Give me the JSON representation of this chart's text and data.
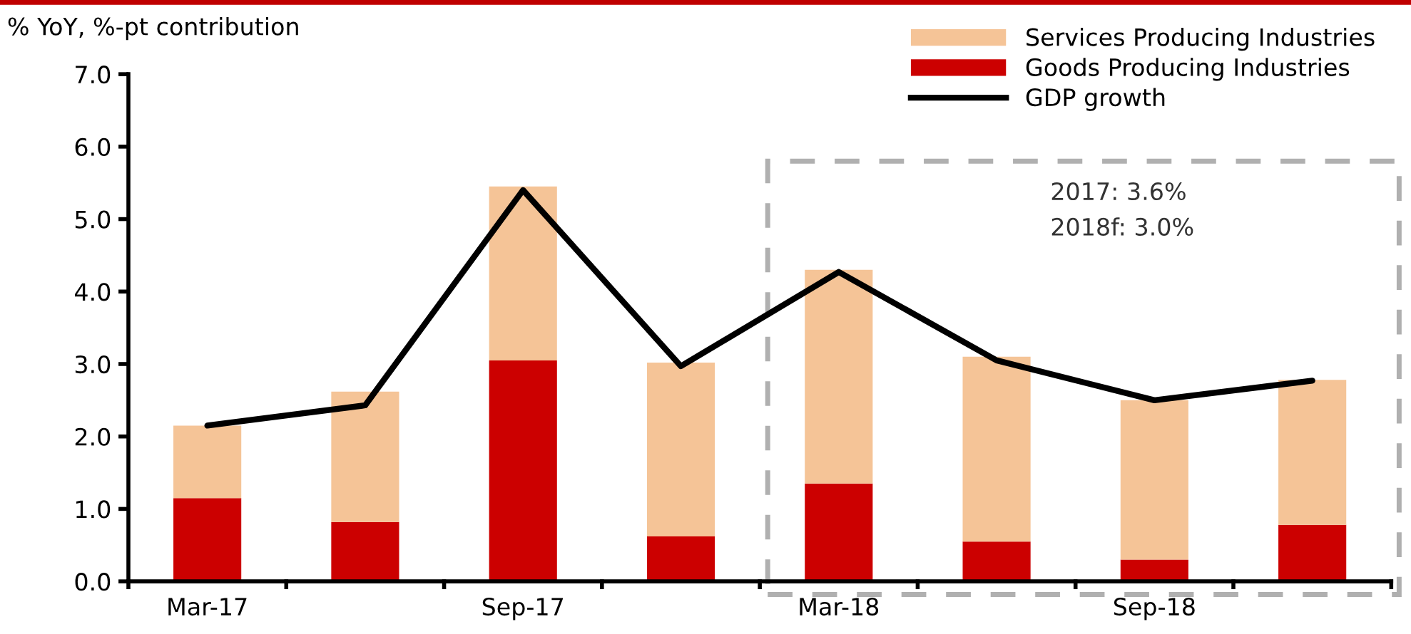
{
  "chart_data": {
    "type": "bar",
    "stacked": true,
    "ylabel": "% YoY, %-pt contribution",
    "categories": [
      "Mar-17",
      null,
      "Sep-17",
      null,
      "Mar-18",
      null,
      "Sep-18",
      null
    ],
    "series": [
      {
        "name": "Goods Producing Industries",
        "color": "#cc0000",
        "values": [
          1.15,
          0.82,
          3.05,
          0.62,
          1.35,
          0.55,
          0.3,
          0.78
        ]
      },
      {
        "name": "Services Producing Industries",
        "color": "#f5c497",
        "values": [
          1.0,
          1.8,
          2.4,
          2.4,
          2.95,
          2.55,
          2.2,
          2.0
        ]
      },
      {
        "name": "GDP growth",
        "type": "line",
        "color": "#000000",
        "values": [
          2.15,
          2.43,
          5.4,
          2.97,
          4.27,
          3.05,
          2.5,
          2.77
        ]
      }
    ],
    "ylim": [
      0,
      7
    ],
    "yticks": [
      {
        "value": 0,
        "label": "0.0"
      },
      {
        "value": 1,
        "label": "1.0"
      },
      {
        "value": 2,
        "label": "2.0"
      },
      {
        "value": 3,
        "label": "3.0"
      },
      {
        "value": 4,
        "label": "4.0"
      },
      {
        "value": 5,
        "label": "5.0"
      },
      {
        "value": 6,
        "label": "6.0"
      },
      {
        "value": 7,
        "label": "7.0"
      }
    ],
    "annotations": [
      "2017: 3.6%",
      "2018f: 3.0%"
    ],
    "legend": "top right",
    "grid": false,
    "marker": "none",
    "line_style": "solid"
  }
}
